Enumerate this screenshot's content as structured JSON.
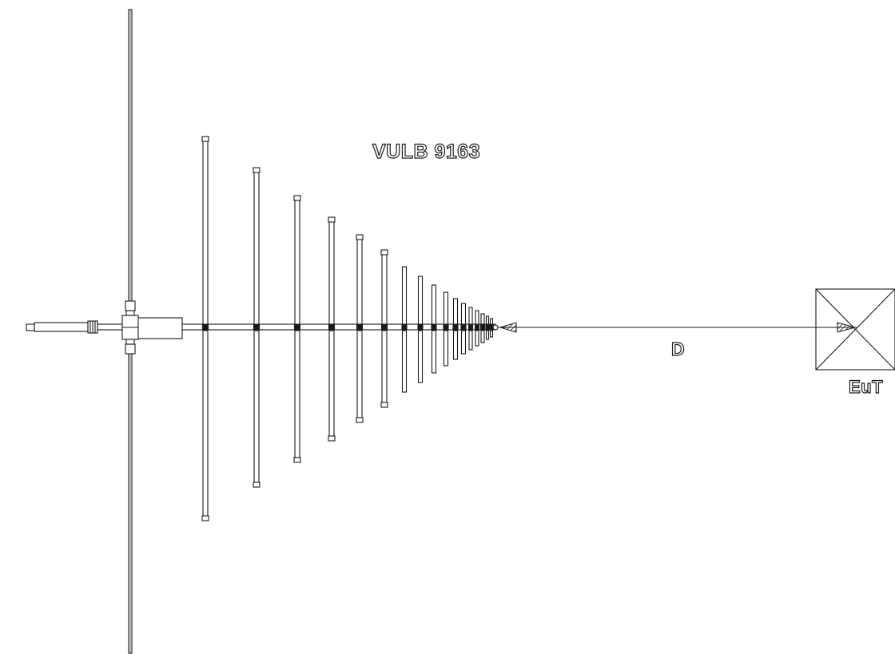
{
  "title": "VULB 9163",
  "distance_label": "D",
  "eut_label": "EuT",
  "colors": {
    "line": "#1a1a1a",
    "background": "#ffffff"
  }
}
